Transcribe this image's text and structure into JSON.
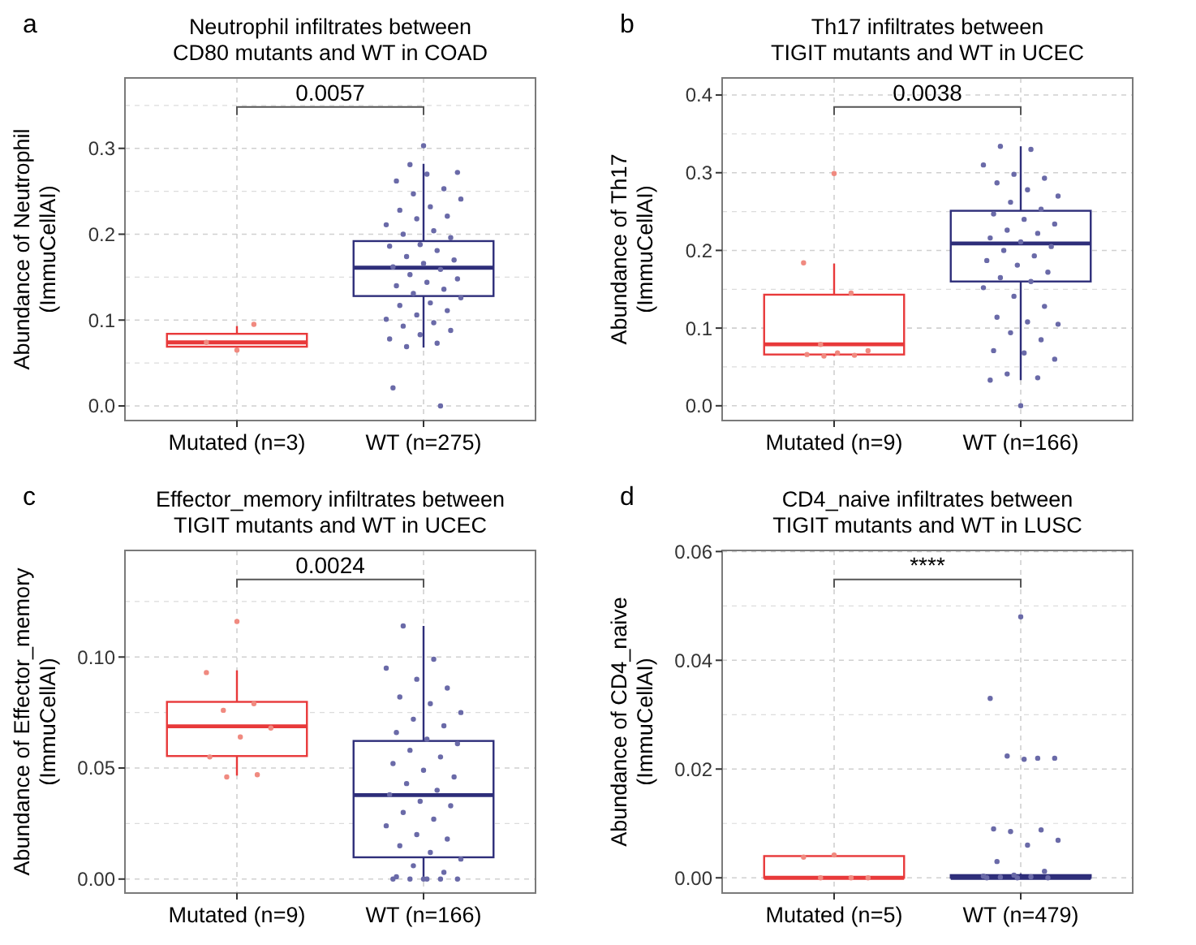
{
  "chart_data": [
    {
      "type": "box",
      "title": "Neutrophil infiltrates between\nCD80 mutants and WT in COAD",
      "ylabel": "Abundance of Neutrophil\n(ImmuCellAI)",
      "categories": [
        "Mutated (n=3)",
        "WT (n=275)"
      ],
      "ylim": [
        -0.017,
        0.382
      ],
      "yticks": [
        {
          "value": 0,
          "label": "0.0"
        },
        {
          "value": 0.1,
          "label": "0.1"
        },
        {
          "value": 0.2,
          "label": "0.2"
        },
        {
          "value": 0.3,
          "label": "0.3"
        }
      ],
      "grid": true,
      "marker": "circle",
      "annotations": [
        "a",
        "0.0057"
      ],
      "series": [
        {
          "type": "box",
          "colors": [
            "#e8393a",
            "#2e2e7a"
          ],
          "boxes": [
            {
              "low": 0.065,
              "q1": 0.069,
              "median": 0.074,
              "q3": 0.084,
              "high": 0.093
            },
            {
              "low": 0.068,
              "q1": 0.128,
              "median": 0.161,
              "q3": 0.192,
              "high": 0.282
            }
          ]
        },
        {
          "type": "scatter",
          "color": "#f08a80",
          "x": [
            "Mutated (n=3)",
            "Mutated (n=3)",
            "Mutated (n=3)"
          ],
          "values": [
            0.065,
            0.074,
            0.095
          ]
        },
        {
          "type": "scatter",
          "color": "#6a6aa8",
          "x": [
            "WT (n=275)",
            "WT (n=275)",
            "WT (n=275)",
            "WT (n=275)",
            "WT (n=275)",
            "WT (n=275)",
            "WT (n=275)",
            "WT (n=275)",
            "WT (n=275)",
            "WT (n=275)",
            "WT (n=275)",
            "WT (n=275)",
            "WT (n=275)",
            "WT (n=275)",
            "WT (n=275)",
            "WT (n=275)",
            "WT (n=275)",
            "WT (n=275)",
            "WT (n=275)",
            "WT (n=275)",
            "WT (n=275)",
            "WT (n=275)",
            "WT (n=275)",
            "WT (n=275)",
            "WT (n=275)",
            "WT (n=275)",
            "WT (n=275)",
            "WT (n=275)",
            "WT (n=275)",
            "WT (n=275)",
            "WT (n=275)",
            "WT (n=275)",
            "WT (n=275)",
            "WT (n=275)",
            "WT (n=275)",
            "WT (n=275)",
            "WT (n=275)",
            "WT (n=275)",
            "WT (n=275)",
            "WT (n=275)",
            "WT (n=275)",
            "WT (n=275)",
            "WT (n=275)",
            "WT (n=275)",
            "WT (n=275)"
          ],
          "values": [
            0.303,
            0.021,
            0.0,
            0.281,
            0.272,
            0.27,
            0.262,
            0.253,
            0.247,
            0.241,
            0.232,
            0.228,
            0.221,
            0.218,
            0.211,
            0.204,
            0.2,
            0.196,
            0.188,
            0.186,
            0.181,
            0.174,
            0.17,
            0.166,
            0.162,
            0.159,
            0.153,
            0.148,
            0.144,
            0.14,
            0.136,
            0.131,
            0.126,
            0.12,
            0.117,
            0.111,
            0.106,
            0.101,
            0.097,
            0.093,
            0.088,
            0.083,
            0.078,
            0.073,
            0.069
          ]
        }
      ]
    },
    {
      "type": "box",
      "title": "Th17 infiltrates between\nTIGIT mutants and WT in UCEC",
      "ylabel": "Abundance of Th17\n(ImmuCellAI)",
      "categories": [
        "Mutated (n=9)",
        "WT (n=166)"
      ],
      "ylim": [
        -0.019,
        0.422
      ],
      "yticks": [
        {
          "value": 0,
          "label": "0.0"
        },
        {
          "value": 0.1,
          "label": "0.1"
        },
        {
          "value": 0.2,
          "label": "0.2"
        },
        {
          "value": 0.3,
          "label": "0.3"
        },
        {
          "value": 0.4,
          "label": "0.4"
        }
      ],
      "grid": true,
      "marker": "circle",
      "annotations": [
        "b",
        "0.0038"
      ],
      "series": [
        {
          "type": "box",
          "colors": [
            "#e8393a",
            "#2e2e7a"
          ],
          "boxes": [
            {
              "low": 0.064,
              "q1": 0.066,
              "median": 0.079,
              "q3": 0.143,
              "high": 0.183
            },
            {
              "low": 0.033,
              "q1": 0.16,
              "median": 0.209,
              "q3": 0.251,
              "high": 0.334
            }
          ]
        },
        {
          "type": "scatter",
          "color": "#f08a80",
          "x": [
            "Mutated (n=9)",
            "Mutated (n=9)",
            "Mutated (n=9)",
            "Mutated (n=9)",
            "Mutated (n=9)",
            "Mutated (n=9)",
            "Mutated (n=9)",
            "Mutated (n=9)",
            "Mutated (n=9)"
          ],
          "values": [
            0.299,
            0.184,
            0.145,
            0.079,
            0.071,
            0.068,
            0.066,
            0.065,
            0.064
          ]
        },
        {
          "type": "scatter",
          "color": "#6a6aa8",
          "x": [
            "WT (n=166)",
            "WT (n=166)",
            "WT (n=166)",
            "WT (n=166)",
            "WT (n=166)",
            "WT (n=166)",
            "WT (n=166)",
            "WT (n=166)",
            "WT (n=166)",
            "WT (n=166)",
            "WT (n=166)",
            "WT (n=166)",
            "WT (n=166)",
            "WT (n=166)",
            "WT (n=166)",
            "WT (n=166)",
            "WT (n=166)",
            "WT (n=166)",
            "WT (n=166)",
            "WT (n=166)",
            "WT (n=166)",
            "WT (n=166)",
            "WT (n=166)",
            "WT (n=166)",
            "WT (n=166)",
            "WT (n=166)",
            "WT (n=166)",
            "WT (n=166)",
            "WT (n=166)",
            "WT (n=166)",
            "WT (n=166)",
            "WT (n=166)",
            "WT (n=166)",
            "WT (n=166)",
            "WT (n=166)",
            "WT (n=166)",
            "WT (n=166)",
            "WT (n=166)",
            "WT (n=166)",
            "WT (n=166)"
          ],
          "values": [
            0.0,
            0.033,
            0.036,
            0.041,
            0.06,
            0.068,
            0.071,
            0.085,
            0.094,
            0.105,
            0.108,
            0.114,
            0.128,
            0.141,
            0.152,
            0.16,
            0.165,
            0.172,
            0.181,
            0.187,
            0.193,
            0.2,
            0.205,
            0.211,
            0.216,
            0.222,
            0.226,
            0.234,
            0.24,
            0.247,
            0.253,
            0.262,
            0.27,
            0.278,
            0.287,
            0.293,
            0.298,
            0.31,
            0.33,
            0.334
          ]
        }
      ]
    },
    {
      "type": "box",
      "title": "Effector_memory infiltrates between\nTIGIT mutants and WT in UCEC",
      "ylabel": "Abundance of Effector_memory\n(ImmuCellAI)",
      "categories": [
        "Mutated (n=9)",
        "WT (n=166)"
      ],
      "ylim": [
        -0.0063,
        0.148
      ],
      "yticks": [
        {
          "value": 0,
          "label": "0.00"
        },
        {
          "value": 0.05,
          "label": "0.05"
        },
        {
          "value": 0.1,
          "label": "0.10"
        }
      ],
      "grid": true,
      "marker": "circle",
      "annotations": [
        "c",
        "0.0024"
      ],
      "series": [
        {
          "type": "box",
          "colors": [
            "#e8393a",
            "#2e2e7a"
          ],
          "boxes": [
            {
              "low": 0.0466,
              "q1": 0.0554,
              "median": 0.0688,
              "q3": 0.0798,
              "high": 0.094
            },
            {
              "low": 0,
              "q1": 0.0098,
              "median": 0.0378,
              "q3": 0.0622,
              "high": 0.114
            }
          ]
        },
        {
          "type": "scatter",
          "color": "#f08a80",
          "x": [
            "Mutated (n=9)",
            "Mutated (n=9)",
            "Mutated (n=9)",
            "Mutated (n=9)",
            "Mutated (n=9)",
            "Mutated (n=9)",
            "Mutated (n=9)",
            "Mutated (n=9)",
            "Mutated (n=9)"
          ],
          "values": [
            0.116,
            0.093,
            0.079,
            0.076,
            0.068,
            0.064,
            0.055,
            0.047,
            0.046
          ]
        },
        {
          "type": "scatter",
          "color": "#6a6aa8",
          "x": [
            "WT (n=166)",
            "WT (n=166)",
            "WT (n=166)",
            "WT (n=166)",
            "WT (n=166)",
            "WT (n=166)",
            "WT (n=166)",
            "WT (n=166)",
            "WT (n=166)",
            "WT (n=166)",
            "WT (n=166)",
            "WT (n=166)",
            "WT (n=166)",
            "WT (n=166)",
            "WT (n=166)",
            "WT (n=166)",
            "WT (n=166)",
            "WT (n=166)",
            "WT (n=166)",
            "WT (n=166)",
            "WT (n=166)",
            "WT (n=166)",
            "WT (n=166)",
            "WT (n=166)",
            "WT (n=166)",
            "WT (n=166)",
            "WT (n=166)",
            "WT (n=166)",
            "WT (n=166)",
            "WT (n=166)",
            "WT (n=166)",
            "WT (n=166)",
            "WT (n=166)",
            "WT (n=166)",
            "WT (n=166)",
            "WT (n=166)",
            "WT (n=166)",
            "WT (n=166)",
            "WT (n=166)",
            "WT (n=166)"
          ],
          "values": [
            0.0,
            0.0,
            0.0,
            0.0,
            0.0,
            0.0,
            0.001,
            0.003,
            0.006,
            0.009,
            0.012,
            0.015,
            0.018,
            0.02,
            0.024,
            0.027,
            0.03,
            0.033,
            0.035,
            0.038,
            0.04,
            0.043,
            0.046,
            0.049,
            0.052,
            0.055,
            0.058,
            0.061,
            0.063,
            0.066,
            0.069,
            0.072,
            0.075,
            0.079,
            0.082,
            0.086,
            0.09,
            0.095,
            0.099,
            0.114
          ]
        }
      ]
    },
    {
      "type": "box",
      "title": "CD4_naive infiltrates between\nTIGIT mutants and WT in LUSC",
      "ylabel": "Abundance of CD4_naive\n(ImmuCellAI)",
      "categories": [
        "Mutated (n=5)",
        "WT (n=479)"
      ],
      "ylim": [
        -0.0028,
        0.0602
      ],
      "yticks": [
        {
          "value": 0,
          "label": "0.00"
        },
        {
          "value": 0.02,
          "label": "0.02"
        },
        {
          "value": 0.04,
          "label": "0.04"
        },
        {
          "value": 0.06,
          "label": "0.06"
        }
      ],
      "grid": true,
      "marker": "circle",
      "annotations": [
        "d",
        "****"
      ],
      "series": [
        {
          "type": "box",
          "colors": [
            "#e8393a",
            "#2e2e7a"
          ],
          "boxes": [
            {
              "low": 0,
              "q1": 0,
              "median": 0,
              "q3": 0.004,
              "high": 0.004
            },
            {
              "low": 0,
              "q1": 0,
              "median": 0,
              "q3": 0.0005,
              "high": 0.0008
            }
          ]
        },
        {
          "type": "scatter",
          "color": "#f08a80",
          "x": [
            "Mutated (n=5)",
            "Mutated (n=5)",
            "Mutated (n=5)",
            "Mutated (n=5)",
            "Mutated (n=5)"
          ],
          "values": [
            0.0042,
            0.0038,
            0,
            0,
            0
          ]
        },
        {
          "type": "scatter",
          "color": "#6a6aa8",
          "x": [
            "WT (n=479)",
            "WT (n=479)",
            "WT (n=479)",
            "WT (n=479)",
            "WT (n=479)",
            "WT (n=479)",
            "WT (n=479)",
            "WT (n=479)",
            "WT (n=479)",
            "WT (n=479)",
            "WT (n=479)",
            "WT (n=479)",
            "WT (n=479)",
            "WT (n=479)",
            "WT (n=479)",
            "WT (n=479)",
            "WT (n=479)",
            "WT (n=479)",
            "WT (n=479)",
            "WT (n=479)"
          ],
          "values": [
            0.048,
            0.033,
            0.022,
            0.0224,
            0.022,
            0.0218,
            0.009,
            0.0088,
            0.0085,
            0.0069,
            0.006,
            0.003,
            0.0012,
            0.0005,
            0.0003,
            0.0002,
            0.0001,
            0,
            0,
            0
          ]
        }
      ]
    }
  ]
}
